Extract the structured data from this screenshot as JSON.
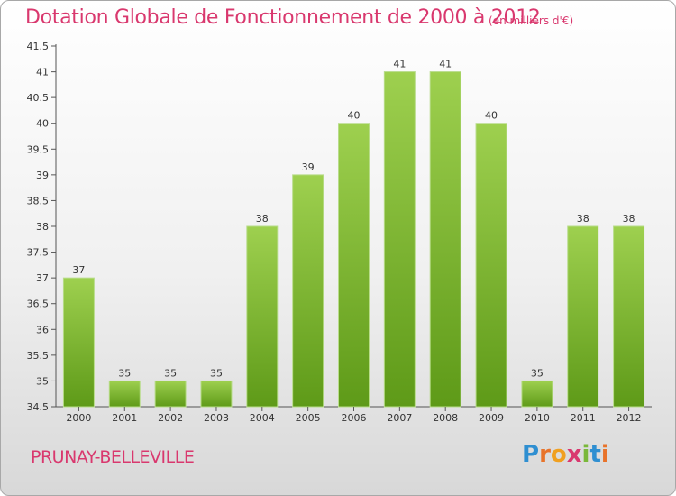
{
  "chart_data": {
    "type": "bar",
    "title": "Dotation Globale de Fonctionnement de 2000 à 2012",
    "unit_label": "(en milliers d'€)",
    "categories": [
      "2000",
      "2001",
      "2002",
      "2003",
      "2004",
      "2005",
      "2006",
      "2007",
      "2008",
      "2009",
      "2010",
      "2011",
      "2012"
    ],
    "values": [
      37,
      35,
      35,
      35,
      38,
      39,
      40,
      41,
      41,
      40,
      35,
      38,
      38
    ],
    "ylim": [
      34.5,
      41.5
    ],
    "yticks": [
      34.5,
      35,
      35.5,
      36,
      36.5,
      37,
      37.5,
      38,
      38.5,
      39,
      39.5,
      40,
      40.5,
      41,
      41.5
    ],
    "xlabel": "",
    "ylabel": "",
    "grid": false,
    "bar_color": "#7ab83a"
  },
  "footer": {
    "commune": "PRUNAY-BELLEVILLE",
    "logo_letters": [
      "P",
      "r",
      "o",
      "x",
      "i",
      "t",
      "i"
    ],
    "logo_colors": [
      "#2f8fd1",
      "#e8732a",
      "#f0a020",
      "#d9386e",
      "#7ab83a",
      "#2f8fd1",
      "#e8732a"
    ]
  }
}
